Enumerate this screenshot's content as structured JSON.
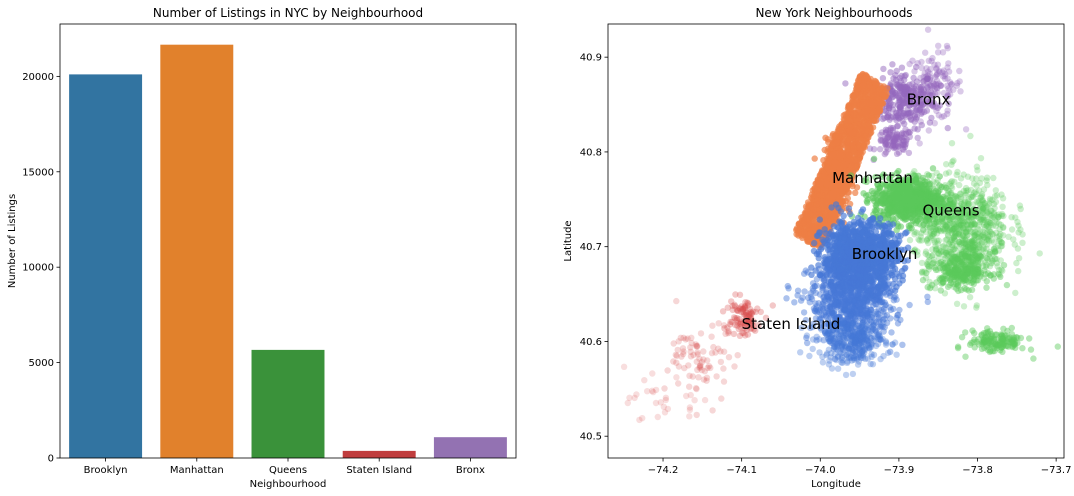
{
  "chart_data": [
    {
      "type": "bar",
      "title": "Number of Listings in NYC by Neighbourhood",
      "xlabel": "Neighbourhood",
      "ylabel": "Number of Listings",
      "categories": [
        "Brooklyn",
        "Manhattan",
        "Queens",
        "Staten Island",
        "Bronx"
      ],
      "values": [
        20104,
        21661,
        5666,
        373,
        1091
      ],
      "colors": [
        "#3274a1",
        "#e1812c",
        "#3a923a",
        "#c03d3e",
        "#9372b2"
      ],
      "ylim": [
        0,
        22745
      ],
      "yticks": [
        0,
        5000,
        10000,
        15000,
        20000
      ],
      "ytick_labels": [
        "0",
        "5000",
        "10000",
        "15000",
        "20000"
      ],
      "grid": false,
      "legend": "none"
    },
    {
      "type": "scatter",
      "title": "New York Neighbourhoods",
      "xlabel": "Longitude",
      "ylabel": "Latitude",
      "xlim": [
        -74.27,
        -73.69
      ],
      "ylim": [
        40.477,
        40.935
      ],
      "xticks": [
        -74.2,
        -74.1,
        -74.0,
        -73.9,
        -73.8,
        -73.7
      ],
      "xtick_labels": [
        "−74.2",
        "−74.1",
        "−74.0",
        "−73.9",
        "−73.8",
        "−73.7"
      ],
      "yticks": [
        40.5,
        40.6,
        40.7,
        40.8,
        40.9
      ],
      "ytick_labels": [
        "40.5",
        "40.6",
        "40.7",
        "40.8",
        "40.9"
      ],
      "grid": false,
      "legend": "none",
      "series": [
        {
          "name": "Bronx",
          "color": "#9467bd",
          "label": "Bronx",
          "label_at": [
            -73.89,
            40.85
          ],
          "clusters": [
            {
              "center": [
                -73.895,
                40.855
              ],
              "spread": [
                0.035,
                0.025
              ],
              "count": 260,
              "opacity": 0.5
            },
            {
              "center": [
                -73.855,
                40.87
              ],
              "spread": [
                0.03,
                0.03
              ],
              "count": 120,
              "opacity": 0.35
            },
            {
              "center": [
                -73.905,
                40.81
              ],
              "spread": [
                0.02,
                0.012
              ],
              "count": 90,
              "opacity": 0.45
            }
          ]
        },
        {
          "name": "Manhattan",
          "color": "#ee7f45",
          "label": "Manhattan",
          "label_at": [
            -73.985,
            40.767
          ],
          "clusters": [
            {
              "line_from": [
                -74.015,
                40.705
              ],
              "line_to": [
                -73.93,
                40.875
              ],
              "width": 0.022,
              "count": 1400,
              "opacity": 0.7
            },
            {
              "center": [
                -73.98,
                40.77
              ],
              "spread": [
                0.015,
                0.03
              ],
              "count": 300,
              "opacity": 0.7
            }
          ]
        },
        {
          "name": "Queens",
          "color": "#5bc95b",
          "label": "Queens",
          "label_at": [
            -73.87,
            40.733
          ],
          "clusters": [
            {
              "center": [
                -73.89,
                40.75
              ],
              "spread": [
                0.035,
                0.02
              ],
              "count": 700,
              "opacity": 0.55
            },
            {
              "center": [
                -73.82,
                40.72
              ],
              "spread": [
                0.05,
                0.045
              ],
              "count": 800,
              "opacity": 0.3
            },
            {
              "center": [
                -73.82,
                40.675
              ],
              "spread": [
                0.03,
                0.015
              ],
              "count": 250,
              "opacity": 0.45
            },
            {
              "center": [
                -73.775,
                40.6
              ],
              "spread": [
                0.03,
                0.01
              ],
              "count": 140,
              "opacity": 0.45
            }
          ]
        },
        {
          "name": "Brooklyn",
          "color": "#4678d6",
          "label": "Brooklyn",
          "label_at": [
            -73.96,
            40.687
          ],
          "clusters": [
            {
              "center": [
                -73.95,
                40.69
              ],
              "spread": [
                0.04,
                0.03
              ],
              "count": 1100,
              "opacity": 0.65
            },
            {
              "center": [
                -73.96,
                40.64
              ],
              "spread": [
                0.045,
                0.035
              ],
              "count": 700,
              "opacity": 0.45
            },
            {
              "center": [
                -73.96,
                40.6
              ],
              "spread": [
                0.035,
                0.02
              ],
              "count": 300,
              "opacity": 0.35
            }
          ]
        },
        {
          "name": "Staten Island",
          "color": "#d64a4a",
          "label": "Staten Island",
          "label_at": [
            -74.1,
            40.613
          ],
          "clusters": [
            {
              "center": [
                -74.1,
                40.625
              ],
              "spread": [
                0.02,
                0.018
              ],
              "count": 100,
              "opacity": 0.3
            },
            {
              "center": [
                -74.15,
                40.58
              ],
              "spread": [
                0.035,
                0.035
              ],
              "count": 80,
              "opacity": 0.22
            },
            {
              "center": [
                -74.2,
                40.535
              ],
              "spread": [
                0.035,
                0.02
              ],
              "count": 30,
              "opacity": 0.18
            }
          ]
        }
      ]
    }
  ]
}
